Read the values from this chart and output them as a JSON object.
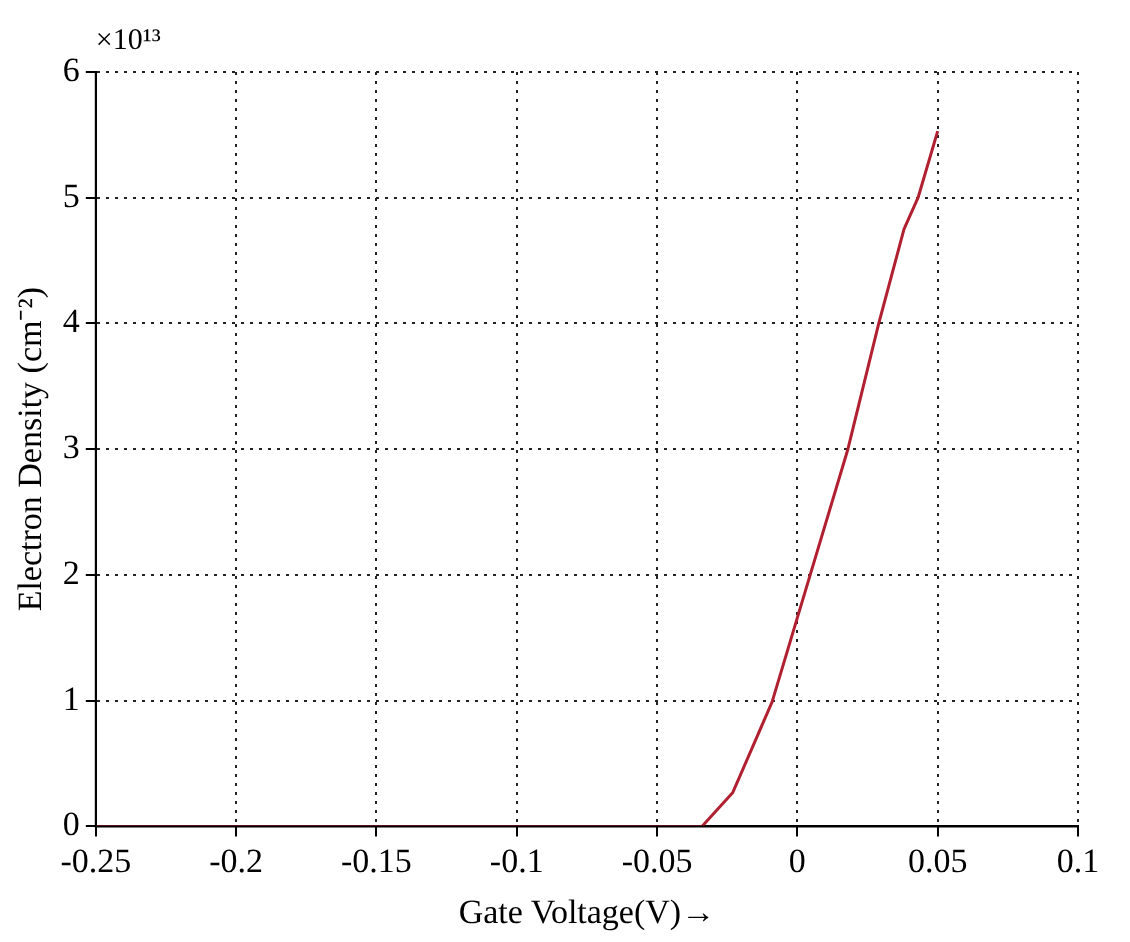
{
  "chart_data": {
    "type": "line",
    "xlabel": "Gate Voltage(V)→",
    "ylabel": "Electron Density (cm⁻²)",
    "annotations": [
      "×10¹³"
    ],
    "x": [
      -0.25,
      -0.034,
      -0.023,
      -0.009,
      0,
      0.018,
      0.029,
      0.038,
      0.043,
      0.05
    ],
    "series": [
      {
        "color": "#b02030",
        "values": [
          0,
          0,
          0.27,
          0.99,
          1.66,
          3.0,
          4.0,
          4.75,
          5.0,
          5.53
        ]
      }
    ],
    "xlim": [
      -0.25,
      0.1
    ],
    "xticks": [
      {
        "value": -0.25,
        "label": "-0.25"
      },
      {
        "value": -0.2,
        "label": "-0.2"
      },
      {
        "value": -0.15,
        "label": "-0.15"
      },
      {
        "value": -0.1,
        "label": "-0.1"
      },
      {
        "value": -0.05,
        "label": "-0.05"
      },
      0,
      {
        "value": 0.05,
        "label": "0.05"
      },
      {
        "value": 0.1,
        "label": "0.1"
      }
    ],
    "ylim": [
      0,
      6
    ],
    "yticks": [
      0,
      1,
      2,
      3,
      4,
      5,
      6
    ],
    "grid": true,
    "legend": false,
    "marker": "none",
    "line_style": "solid"
  }
}
